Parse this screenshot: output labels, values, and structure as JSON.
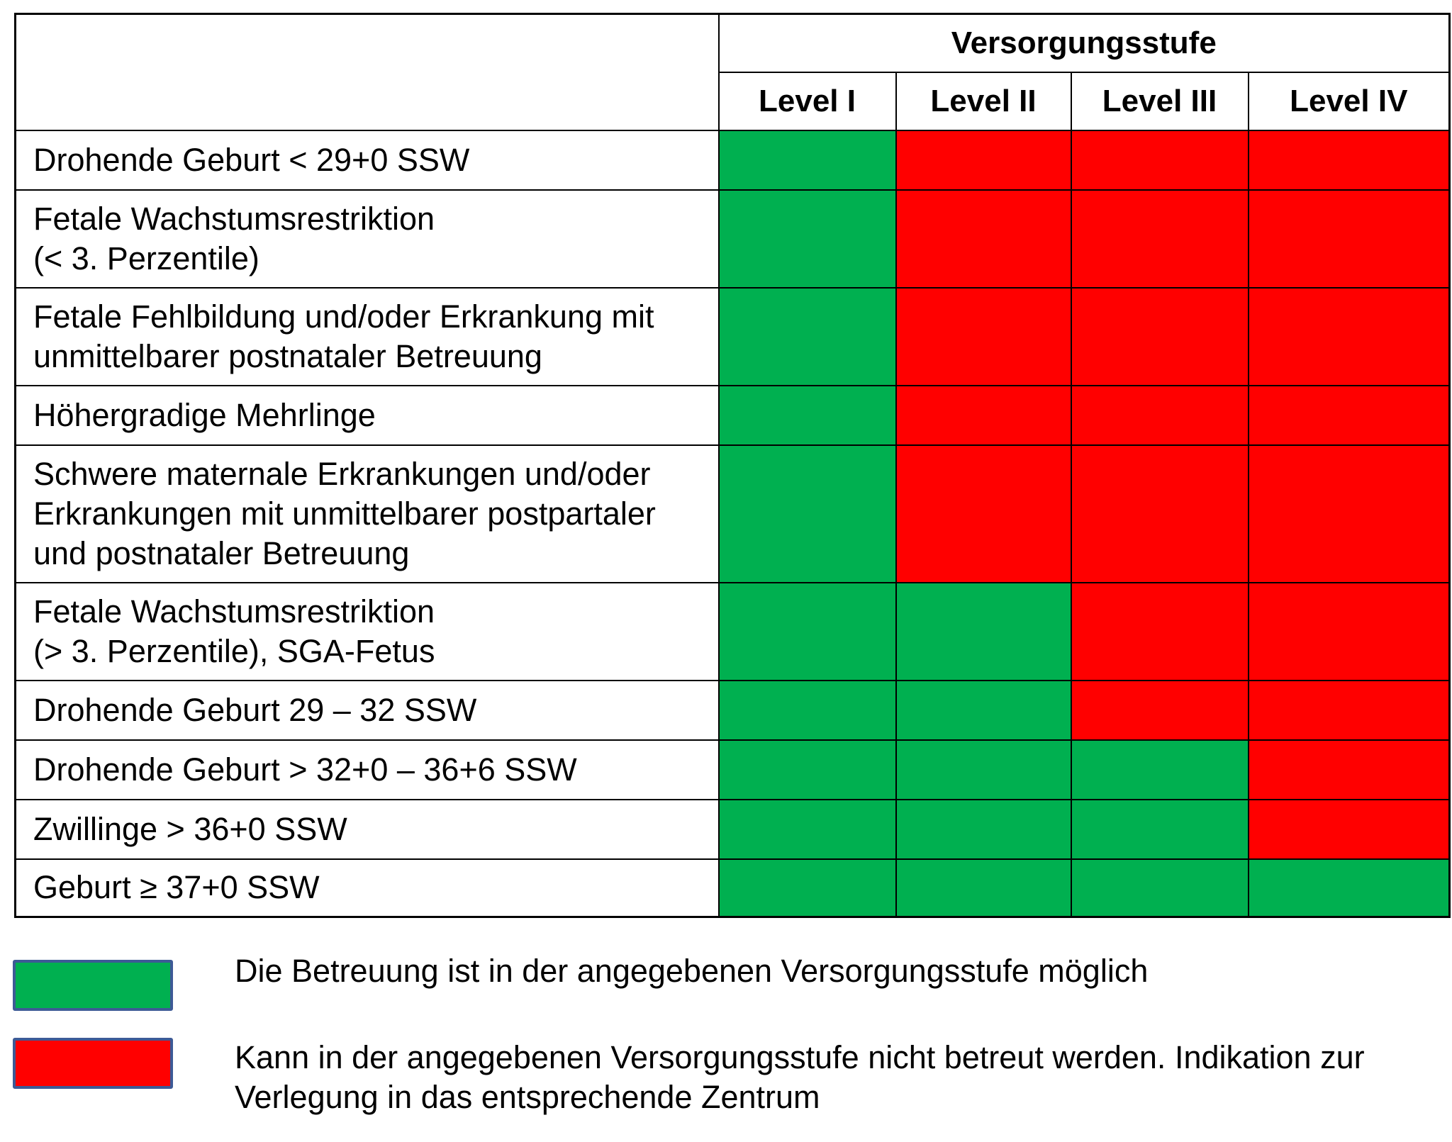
{
  "header": {
    "group_title": "Versorgungsstufe",
    "levels": [
      "Level I",
      "Level II",
      "Level III",
      "Level IV"
    ]
  },
  "colors": {
    "green": "#00b050",
    "red": "#ff0000",
    "swatch_border": "#3d5a96"
  },
  "rows": [
    {
      "label": "Drohende Geburt < 29+0 SSW",
      "cells": [
        "green",
        "red",
        "red",
        "red"
      ]
    },
    {
      "label": "Fetale Wachstumsrestriktion\n(< 3. Perzentile)",
      "cells": [
        "green",
        "red",
        "red",
        "red"
      ]
    },
    {
      "label": "Fetale Fehlbildung und/oder Erkrankung mit\nunmittelbarer postnataler Betreuung",
      "cells": [
        "green",
        "red",
        "red",
        "red"
      ]
    },
    {
      "label": "Höhergradige Mehrlinge",
      "cells": [
        "green",
        "red",
        "red",
        "red"
      ]
    },
    {
      "label": "Schwere maternale Erkrankungen und/oder\nErkrankungen mit unmittelbarer postpartaler\nund postnataler Betreuung",
      "cells": [
        "green",
        "red",
        "red",
        "red"
      ]
    },
    {
      "label": "Fetale Wachstumsrestriktion\n(> 3. Perzentile), SGA-Fetus",
      "cells": [
        "green",
        "green",
        "red",
        "red"
      ]
    },
    {
      "label": "Drohende Geburt 29 – 32 SSW",
      "cells": [
        "green",
        "green",
        "red",
        "red"
      ]
    },
    {
      "label": "Drohende Geburt > 32+0 – 36+6 SSW",
      "cells": [
        "green",
        "green",
        "green",
        "red"
      ]
    },
    {
      "label": "Zwillinge > 36+0 SSW",
      "cells": [
        "green",
        "green",
        "green",
        "red"
      ]
    },
    {
      "label": "Geburt ≥ 37+0 SSW",
      "cells": [
        "green",
        "green",
        "green",
        "green"
      ]
    }
  ],
  "legend": {
    "green_text": "Die Betreuung ist in der angegebenen Versorgungsstufe möglich",
    "red_text": "Kann in der angegebenen Versorgungsstufe nicht betreut werden. Indikation zur\nVerlegung in das entsprechende Zentrum"
  }
}
